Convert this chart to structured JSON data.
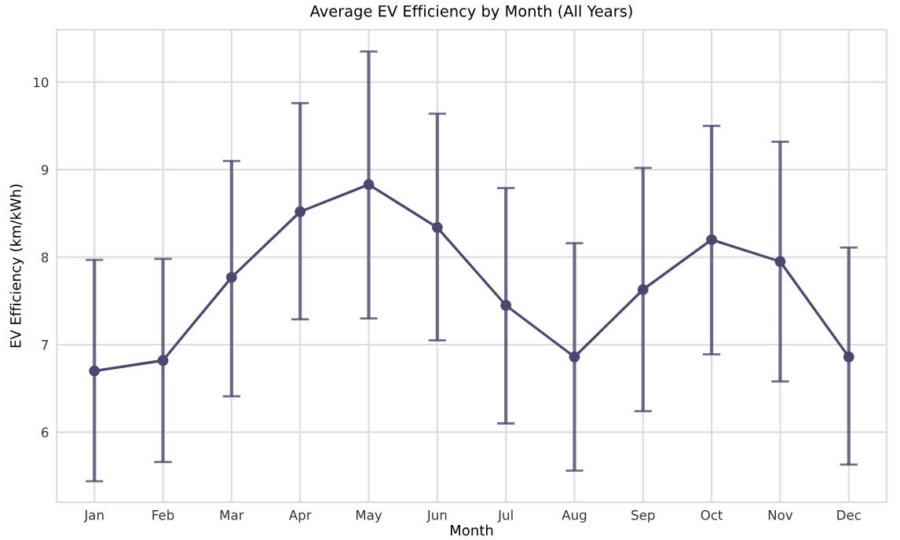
{
  "chart_data": {
    "type": "line",
    "title": "Average EV Efficiency by Month (All Years)",
    "xlabel": "Month",
    "ylabel": "EV Efficiency (km/kWh)",
    "categories": [
      "Jan",
      "Feb",
      "Mar",
      "Apr",
      "May",
      "Jun",
      "Jul",
      "Aug",
      "Sep",
      "Oct",
      "Nov",
      "Dec"
    ],
    "values": [
      6.7,
      6.82,
      7.77,
      8.52,
      8.83,
      8.34,
      7.45,
      6.86,
      7.63,
      8.2,
      7.95,
      6.86
    ],
    "errors": [
      [
        5.44,
        7.97
      ],
      [
        5.66,
        7.98
      ],
      [
        6.41,
        9.1
      ],
      [
        7.29,
        9.76
      ],
      [
        7.3,
        10.35
      ],
      [
        7.05,
        9.64
      ],
      [
        6.1,
        8.79
      ],
      [
        5.56,
        8.16
      ],
      [
        6.24,
        9.02
      ],
      [
        6.89,
        9.5
      ],
      [
        6.58,
        9.32
      ],
      [
        5.63,
        8.11
      ]
    ],
    "color": "#4a4870",
    "marker": "circle",
    "line_style": "solid",
    "grid": true,
    "ylim": [
      5.2,
      10.6
    ],
    "yticks": [
      6,
      7,
      8,
      9,
      10
    ]
  }
}
